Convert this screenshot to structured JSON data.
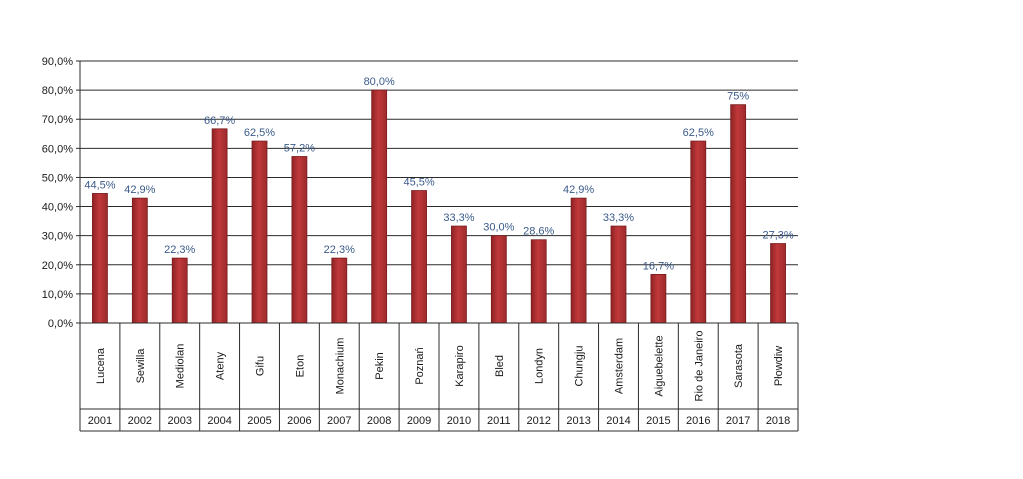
{
  "chart_data": {
    "type": "bar",
    "title": "",
    "xlabel": "",
    "ylabel": "",
    "ylim": [
      0,
      90
    ],
    "y_ticks": [
      "0,0%",
      "10,0%",
      "20,0%",
      "30,0%",
      "40,0%",
      "50,0%",
      "60,0%",
      "70,0%",
      "80,0%",
      "90,0%"
    ],
    "grid": true,
    "legend": "none",
    "colors": {
      "bar": "#c0393b",
      "bar_edge": "#7a1c1d",
      "label": "#3a5a8a",
      "grid": "#2b2b2b"
    },
    "categories": [
      "Lucena",
      "Sewilla",
      "Mediolan",
      "Ateny",
      "Gifu",
      "Eton",
      "Monachium",
      "Pekin",
      "Poznań",
      "Karapiro",
      "Bled",
      "Londyn",
      "Chungju",
      "Amsterdam",
      "Aiguebelette",
      "Rio de Janeiro",
      "Sarasota",
      "Płowdiw"
    ],
    "years": [
      "2001",
      "2002",
      "2003",
      "2004",
      "2005",
      "2006",
      "2007",
      "2008",
      "2009",
      "2010",
      "2011",
      "2012",
      "2013",
      "2014",
      "2015",
      "2016",
      "2017",
      "2018"
    ],
    "values": [
      44.5,
      42.9,
      22.3,
      66.7,
      62.5,
      57.2,
      22.3,
      80.0,
      45.5,
      33.3,
      30.0,
      28.6,
      42.9,
      33.3,
      16.7,
      62.5,
      75.0,
      27.3
    ],
    "data_labels": [
      "44,5%",
      "42,9%",
      "22,3%",
      "66,7%",
      "62,5%",
      "57,2%",
      "22,3%",
      "80,0%",
      "45,5%",
      "33,3%",
      "30,0%",
      "28,6%",
      "42,9%",
      "33,3%",
      "16,7%",
      "62,5%",
      "75%",
      "27,3%"
    ]
  }
}
